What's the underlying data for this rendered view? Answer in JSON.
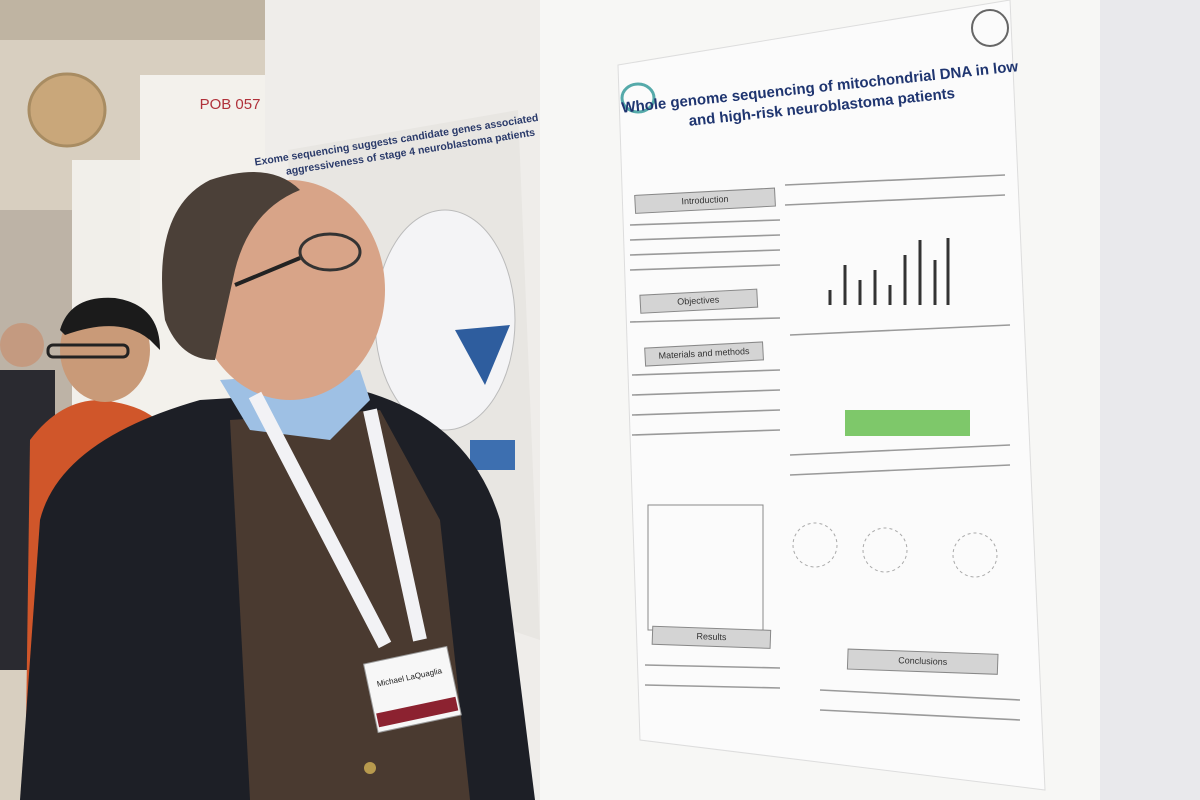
{
  "scene": {
    "sign": "POB 057",
    "back_poster": {
      "title_lines": [
        "Exome sequencing suggests candidate genes associated with",
        "aggressiveness of stage 4 neuroblastoma patients"
      ]
    },
    "main_poster": {
      "title_lines": [
        "Whole genome sequencing of mitochondrial DNA in low",
        "and high-risk neuroblastoma patients"
      ],
      "sections": [
        "Introduction",
        "Objectives",
        "Materials and methods",
        "Results",
        "Conclusions"
      ]
    },
    "badge": {
      "name": "Michael LaQuaglia"
    }
  }
}
